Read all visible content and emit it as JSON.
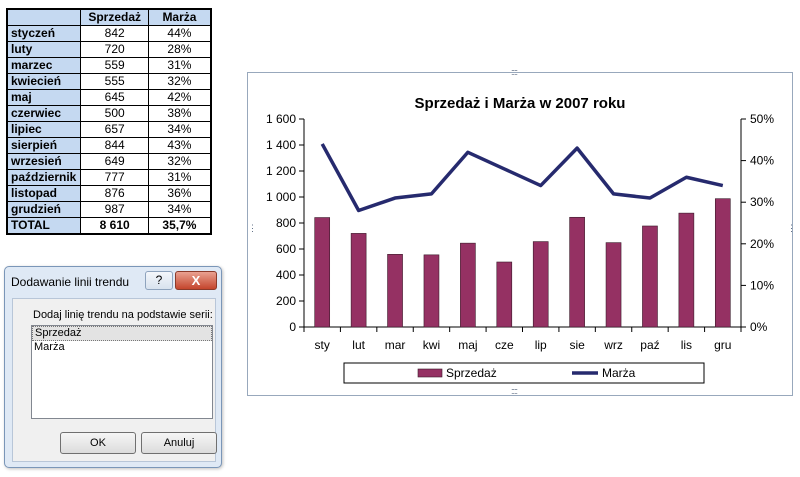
{
  "table": {
    "headers": [
      "Sprzedaż",
      "Marża"
    ],
    "rows": [
      {
        "month": "styczeń",
        "sales": "842",
        "margin": "44%"
      },
      {
        "month": "luty",
        "sales": "720",
        "margin": "28%"
      },
      {
        "month": "marzec",
        "sales": "559",
        "margin": "31%"
      },
      {
        "month": "kwiecień",
        "sales": "555",
        "margin": "32%"
      },
      {
        "month": "maj",
        "sales": "645",
        "margin": "42%"
      },
      {
        "month": "czerwiec",
        "sales": "500",
        "margin": "38%"
      },
      {
        "month": "lipiec",
        "sales": "657",
        "margin": "34%"
      },
      {
        "month": "sierpień",
        "sales": "844",
        "margin": "43%"
      },
      {
        "month": "wrzesień",
        "sales": "649",
        "margin": "32%"
      },
      {
        "month": "październik",
        "sales": "777",
        "margin": "31%"
      },
      {
        "month": "listopad",
        "sales": "876",
        "margin": "36%"
      },
      {
        "month": "grudzień",
        "sales": "987",
        "margin": "34%"
      }
    ],
    "total": {
      "label": "TOTAL",
      "sales": "8 610",
      "margin": "35,7%"
    }
  },
  "dialog": {
    "title": "Dodawanie linii trendu",
    "help": "?",
    "close": "X",
    "prompt": "Dodaj linię trendu na podstawie serii:",
    "series": [
      "Sprzedaż",
      "Marża"
    ],
    "ok_label": "OK",
    "cancel_label": "Anuluj"
  },
  "chart_data": {
    "type": "bar",
    "title": "Sprzedaż i Marża w 2007 roku",
    "categories": [
      "sty",
      "lut",
      "mar",
      "kwi",
      "maj",
      "cze",
      "lip",
      "sie",
      "wrz",
      "paź",
      "lis",
      "gru"
    ],
    "series": [
      {
        "name": "Sprzedaż",
        "type": "bar",
        "axis": "left",
        "color": "#953163",
        "values": [
          842,
          720,
          559,
          555,
          645,
          500,
          657,
          844,
          649,
          777,
          876,
          987
        ]
      },
      {
        "name": "Marża",
        "type": "line",
        "axis": "right",
        "color": "#262a6e",
        "values": [
          44,
          28,
          31,
          32,
          42,
          38,
          34,
          43,
          32,
          31,
          36,
          34
        ]
      }
    ],
    "left_axis": {
      "ylim": [
        0,
        1600
      ],
      "ticks": [
        "0",
        "200",
        "400",
        "600",
        "800",
        "1 000",
        "1 200",
        "1 400",
        "1 600"
      ]
    },
    "right_axis": {
      "ylim": [
        0,
        50
      ],
      "ticks": [
        "0%",
        "10%",
        "20%",
        "30%",
        "40%",
        "50%"
      ]
    },
    "legend_position": "bottom",
    "grid": false
  }
}
